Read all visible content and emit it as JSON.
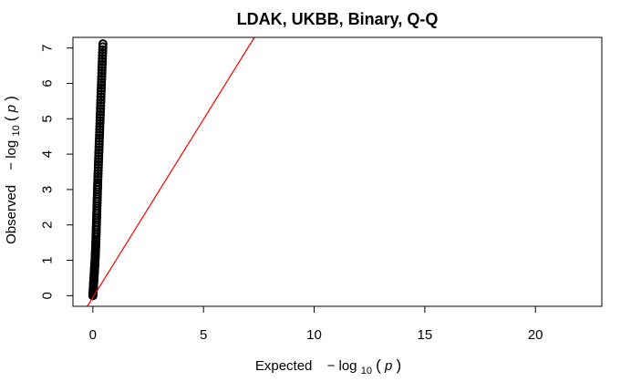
{
  "chart_data": {
    "type": "scatter",
    "title": "LDAK, UKBB, Binary, Q-Q",
    "xlabel": {
      "prefix": "Expected",
      "minus": "−",
      "log": "log",
      "base": "10",
      "arg": "p"
    },
    "ylabel": {
      "prefix": "Observed",
      "minus": "−",
      "log": "log",
      "base": "10",
      "arg": "p"
    },
    "xlim": [
      -0.9,
      23
    ],
    "ylim": [
      -0.3,
      7.3
    ],
    "x_ticks": [
      0,
      5,
      10,
      15,
      20
    ],
    "x_tick_labels": [
      "0",
      "5",
      "10",
      "15",
      "20"
    ],
    "y_ticks": [
      0,
      1,
      2,
      3,
      4,
      5,
      6,
      7
    ],
    "y_tick_labels": [
      "0",
      "1",
      "2",
      "3",
      "4",
      "5",
      "6",
      "7"
    ],
    "grid": false,
    "series": [
      {
        "points": [
          [
            0.0,
            0.0
          ],
          [
            0.02,
            0.2
          ],
          [
            0.04,
            0.4
          ],
          [
            0.06,
            0.6
          ],
          [
            0.08,
            0.8
          ],
          [
            0.1,
            1.0
          ],
          [
            0.12,
            1.3
          ],
          [
            0.14,
            1.6
          ],
          [
            0.16,
            2.0
          ],
          [
            0.18,
            2.4
          ],
          [
            0.2,
            2.8
          ],
          [
            0.22,
            3.2
          ],
          [
            0.25,
            3.7
          ],
          [
            0.28,
            4.2
          ],
          [
            0.31,
            4.7
          ],
          [
            0.34,
            5.2
          ],
          [
            0.37,
            5.7
          ],
          [
            0.4,
            6.2
          ],
          [
            0.43,
            6.7
          ],
          [
            0.46,
            7.2
          ]
        ],
        "color": "#000000"
      }
    ],
    "reference_line": {
      "slope": 1,
      "intercept": 0,
      "color": "#ff0000"
    }
  }
}
